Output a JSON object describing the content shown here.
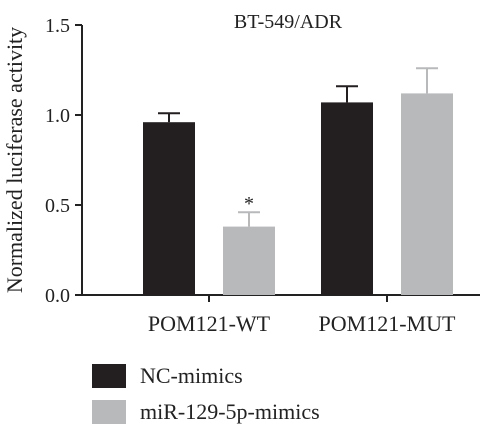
{
  "chart_data": {
    "type": "bar",
    "title": "BT-549/ADR",
    "ylabel": "Normalized luciferase activity",
    "xlabel": "",
    "ylim": [
      0,
      1.5
    ],
    "yticks": [
      "0.0",
      "0.5",
      "1.0",
      "1.5"
    ],
    "categories": [
      "POM121-WT",
      "POM121-MUT"
    ],
    "series": [
      {
        "name": "NC-mimics",
        "color": "#231f20",
        "values": [
          0.96,
          1.07
        ],
        "errors": [
          0.05,
          0.09
        ]
      },
      {
        "name": "miR-129-5p-mimics",
        "color": "#b8b9bb",
        "values": [
          0.38,
          1.12
        ],
        "errors": [
          0.08,
          0.14
        ]
      }
    ],
    "annotations": [
      {
        "text": "*",
        "category": "POM121-WT",
        "series": "miR-129-5p-mimics"
      }
    ],
    "legend_position": "bottom-left",
    "grid": false
  }
}
